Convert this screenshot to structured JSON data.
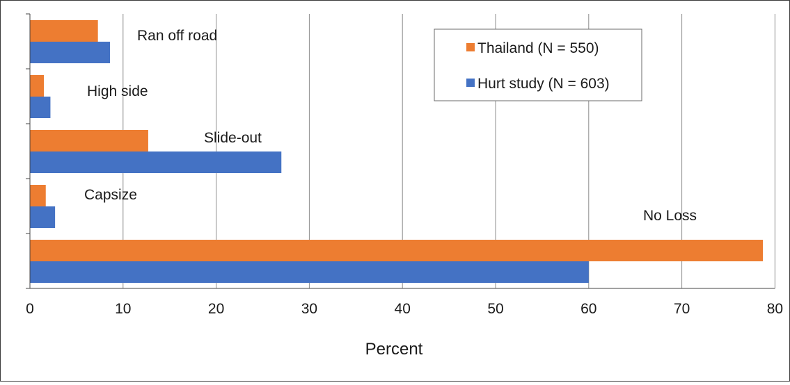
{
  "chart_data": {
    "type": "bar",
    "orientation": "horizontal",
    "categories": [
      "Ran off road",
      "High side",
      "Slide-out",
      "Capsize",
      "No Loss"
    ],
    "series": [
      {
        "name": "Thailand (N = 550)",
        "color": "#ED7D31",
        "values": [
          7.3,
          1.5,
          12.7,
          1.7,
          78.7
        ]
      },
      {
        "name": "Hurt study (N = 603)",
        "color": "#4472C4",
        "values": [
          8.6,
          2.2,
          27.0,
          2.7,
          60.0
        ]
      }
    ],
    "xlabel": "Percent",
    "xlim": [
      0,
      80
    ],
    "xticks": [
      0,
      10,
      20,
      30,
      40,
      50,
      60,
      70,
      80
    ],
    "grid": "vertical",
    "legend_position": "top-right"
  }
}
